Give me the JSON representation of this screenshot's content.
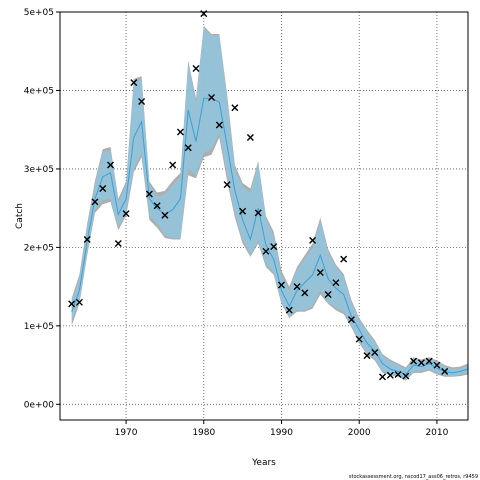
{
  "chart_data": {
    "type": "line",
    "xlabel": "Years",
    "ylabel": "Catch",
    "footnote": "stockassessment.org, nscod17_ass06_retros, r9459",
    "xlim": [
      1961.5,
      2014
    ],
    "ylim": [
      -20000,
      500000
    ],
    "xticks": [
      1970,
      1980,
      1990,
      2000,
      2010
    ],
    "yticks": [
      0,
      100000,
      200000,
      300000,
      400000,
      500000
    ],
    "ytick_labels": [
      "0e+00",
      "1e+05",
      "2e+05",
      "3e+05",
      "4e+05",
      "5e+05"
    ],
    "grid": true,
    "colors": {
      "band_outer": "#a0a0a0",
      "band_inner": "#8ec8e4",
      "line": "#3a9fd8",
      "observed": "#000000"
    },
    "observed": {
      "marker": "x",
      "x": [
        1963,
        1964,
        1965,
        1966,
        1967,
        1968,
        1969,
        1970,
        1971,
        1972,
        1973,
        1974,
        1975,
        1976,
        1977,
        1978,
        1979,
        1980,
        1981,
        1982,
        1983,
        1984,
        1985,
        1986,
        1987,
        1988,
        1989,
        1990,
        1991,
        1992,
        1993,
        1994,
        1995,
        1996,
        1997,
        1998,
        1999,
        2000,
        2001,
        2002,
        2003,
        2004,
        2005,
        2006,
        2007,
        2008,
        2009,
        2010,
        2011
      ],
      "y": [
        128000,
        130000,
        210000,
        258000,
        275000,
        305000,
        205000,
        243000,
        410000,
        386000,
        268000,
        253000,
        241000,
        305000,
        347000,
        327000,
        428000,
        498000,
        391000,
        356000,
        280000,
        378000,
        246000,
        340000,
        244000,
        195000,
        201000,
        152000,
        120000,
        150000,
        142000,
        209000,
        168000,
        140000,
        155000,
        185000,
        108000,
        83000,
        62000,
        66000,
        35000,
        37000,
        38000,
        36000,
        55000,
        53000,
        55000,
        50000,
        42000
      ]
    },
    "estimate": {
      "x": [
        1963,
        1964,
        1965,
        1966,
        1967,
        1968,
        1969,
        1970,
        1971,
        1972,
        1973,
        1974,
        1975,
        1976,
        1977,
        1978,
        1979,
        1980,
        1981,
        1982,
        1983,
        1984,
        1985,
        1986,
        1987,
        1988,
        1989,
        1990,
        1991,
        1992,
        1993,
        1994,
        1995,
        1996,
        1997,
        1998,
        1999,
        2000,
        2001,
        2002,
        2003,
        2004,
        2005,
        2006,
        2007,
        2008,
        2009,
        2010,
        2011,
        2012,
        2013,
        2014
      ],
      "y": [
        118000,
        145000,
        208000,
        262000,
        290000,
        295000,
        242000,
        262000,
        340000,
        360000,
        262000,
        250000,
        242000,
        248000,
        262000,
        375000,
        335000,
        390000,
        390000,
        385000,
        330000,
        272000,
        235000,
        210000,
        250000,
        203000,
        185000,
        145000,
        125000,
        145000,
        155000,
        165000,
        190000,
        160000,
        148000,
        140000,
        112000,
        95000,
        78000,
        68000,
        52000,
        45000,
        42000,
        38000,
        50000,
        48000,
        52000,
        46000,
        42000,
        40000,
        42000,
        45000
      ],
      "lower": [
        105000,
        132000,
        195000,
        248000,
        260000,
        262000,
        225000,
        245000,
        300000,
        320000,
        240000,
        230000,
        215000,
        212000,
        212000,
        300000,
        292000,
        320000,
        325000,
        345000,
        292000,
        242000,
        210000,
        190000,
        208000,
        178000,
        168000,
        130000,
        112000,
        120000,
        120000,
        125000,
        145000,
        130000,
        123000,
        118000,
        100000,
        80000,
        65000,
        58000,
        42000,
        38000,
        36000,
        31000,
        42000,
        42000,
        45000,
        40000,
        37000,
        36000,
        38000,
        40000
      ],
      "upper": [
        130000,
        160000,
        225000,
        280000,
        322000,
        324000,
        258000,
        280000,
        410000,
        415000,
        280000,
        265000,
        268000,
        280000,
        290000,
        435000,
        385000,
        480000,
        470000,
        470000,
        390000,
        300000,
        278000,
        270000,
        308000,
        237000,
        215000,
        165000,
        145000,
        172000,
        186000,
        200000,
        235000,
        195000,
        175000,
        163000,
        130000,
        108000,
        93000,
        80000,
        62000,
        55000,
        50000,
        45000,
        58000,
        55000,
        58000,
        54000,
        48000,
        45000,
        46000,
        50000
      ],
      "outer_lower": [
        100000,
        128000,
        190000,
        244000,
        255000,
        258000,
        222000,
        240000,
        296000,
        315000,
        235000,
        225000,
        212000,
        210000,
        210000,
        292000,
        288000,
        315000,
        318000,
        340000,
        285000,
        238000,
        205000,
        188000,
        205000,
        175000,
        165000,
        128000,
        110000,
        118000,
        118000,
        122000,
        140000,
        128000,
        120000,
        115000,
        98000,
        78000,
        63000,
        56000,
        40000,
        37000,
        35000,
        30000,
        40000,
        40000,
        43000,
        38000,
        35000,
        35000,
        36000,
        38000
      ],
      "outer_upper": [
        135000,
        165000,
        230000,
        285000,
        325000,
        328000,
        262000,
        284000,
        415000,
        418000,
        284000,
        270000,
        272000,
        285000,
        295000,
        438000,
        390000,
        482000,
        472000,
        472000,
        395000,
        305000,
        282000,
        275000,
        310000,
        240000,
        220000,
        170000,
        150000,
        175000,
        190000,
        205000,
        238000,
        198000,
        178000,
        166000,
        133000,
        110000,
        95000,
        82000,
        64000,
        57000,
        52000,
        47000,
        60000,
        57000,
        60000,
        56000,
        50000,
        47000,
        48000,
        52000
      ]
    }
  }
}
